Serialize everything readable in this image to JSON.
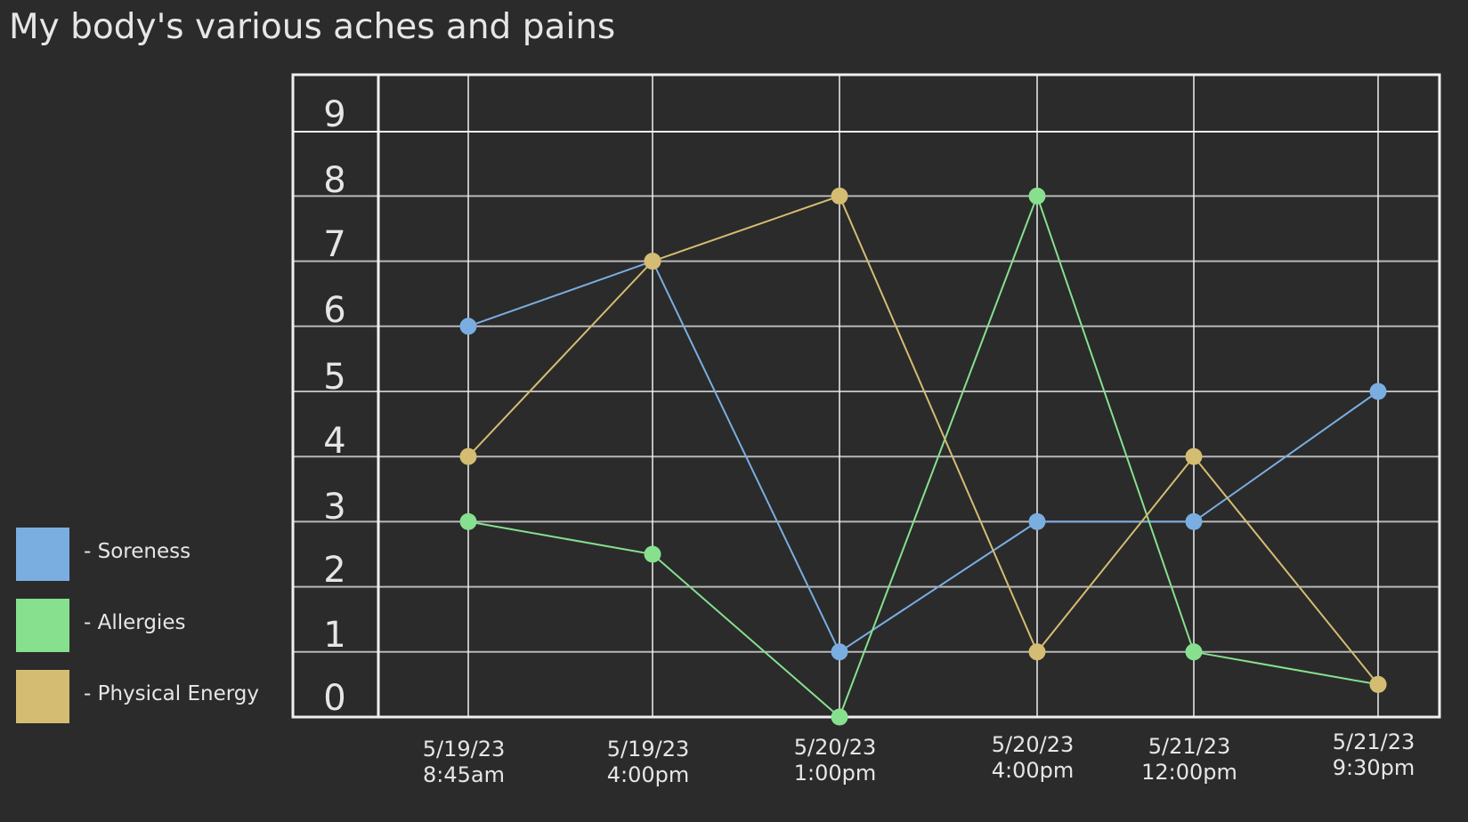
{
  "chart_data": {
    "type": "line",
    "title": "My body's various aches and pains",
    "xlabel": "",
    "ylabel": "",
    "categories": [
      [
        "5/19/23",
        "8:45am"
      ],
      [
        "5/19/23",
        "4:00pm"
      ],
      [
        "5/20/23",
        "1:00pm"
      ],
      [
        "5/20/23",
        "4:00pm"
      ],
      [
        "5/21/23",
        "12:00pm"
      ],
      [
        "5/21/23",
        "9:30pm"
      ]
    ],
    "yticks": [
      "0",
      "1",
      "2",
      "3",
      "4",
      "5",
      "6",
      "7",
      "8",
      "9"
    ],
    "ylim": [
      0,
      9.9
    ],
    "grid": true,
    "legend_position": "left",
    "series": [
      {
        "name": "Soreness",
        "color": "#7aaee0",
        "values": [
          6,
          7,
          1,
          3,
          3,
          5
        ]
      },
      {
        "name": "Allergies",
        "color": "#86e08e",
        "values": [
          3,
          2.5,
          0,
          8,
          1,
          0.5
        ]
      },
      {
        "name": "Physical Energy",
        "color": "#d4bc72",
        "values": [
          4,
          7,
          8,
          1,
          4,
          0.5
        ]
      }
    ]
  },
  "legend": {
    "items": [
      {
        "label": "- Soreness",
        "color": "#7aaee0"
      },
      {
        "label": "- Allergies",
        "color": "#86e08e"
      },
      {
        "label": "- Physical Energy",
        "color": "#d4bc72"
      }
    ]
  },
  "colors": {
    "background": "#2b2b2b",
    "grid_vertical": "#f0f0f0",
    "grid_horizontal": "#b8b8b8",
    "frame": "#f0f0f0",
    "text": "#e6e6e6"
  }
}
